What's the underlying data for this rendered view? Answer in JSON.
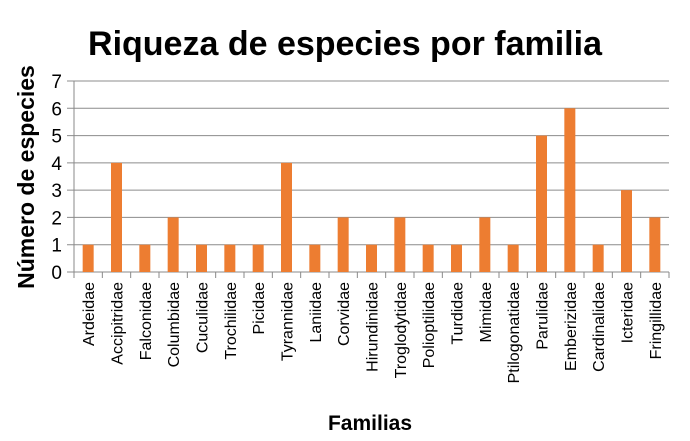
{
  "chart_data": {
    "type": "bar",
    "title": "Riqueza de especies por familia",
    "xlabel": "Familias",
    "ylabel": "Número de especies",
    "ylim": [
      0,
      7
    ],
    "yticks": [
      "0",
      "1",
      "2",
      "3",
      "4",
      "5",
      "6",
      "7"
    ],
    "grid": true,
    "bar_color": "#ED7D31",
    "categories": [
      "Ardeidae",
      "Accipitridae",
      "Falconidae",
      "Columbidae",
      "Cuculidae",
      "Trochilidae",
      "Picidae",
      "Tyrannidae",
      "Laniidae",
      "Corvidae",
      "Hirundinidae",
      "Troglodytidae",
      "Polioptilidae",
      "Turdidae",
      "Mimidae",
      "Ptilogonatidae",
      "Parulidae",
      "Emberizidae",
      "Cardinalidae",
      "Icteridae",
      "Fringillidae"
    ],
    "values": [
      1,
      4,
      1,
      2,
      1,
      1,
      1,
      4,
      1,
      2,
      1,
      2,
      1,
      1,
      2,
      1,
      5,
      6,
      1,
      3,
      2
    ]
  }
}
